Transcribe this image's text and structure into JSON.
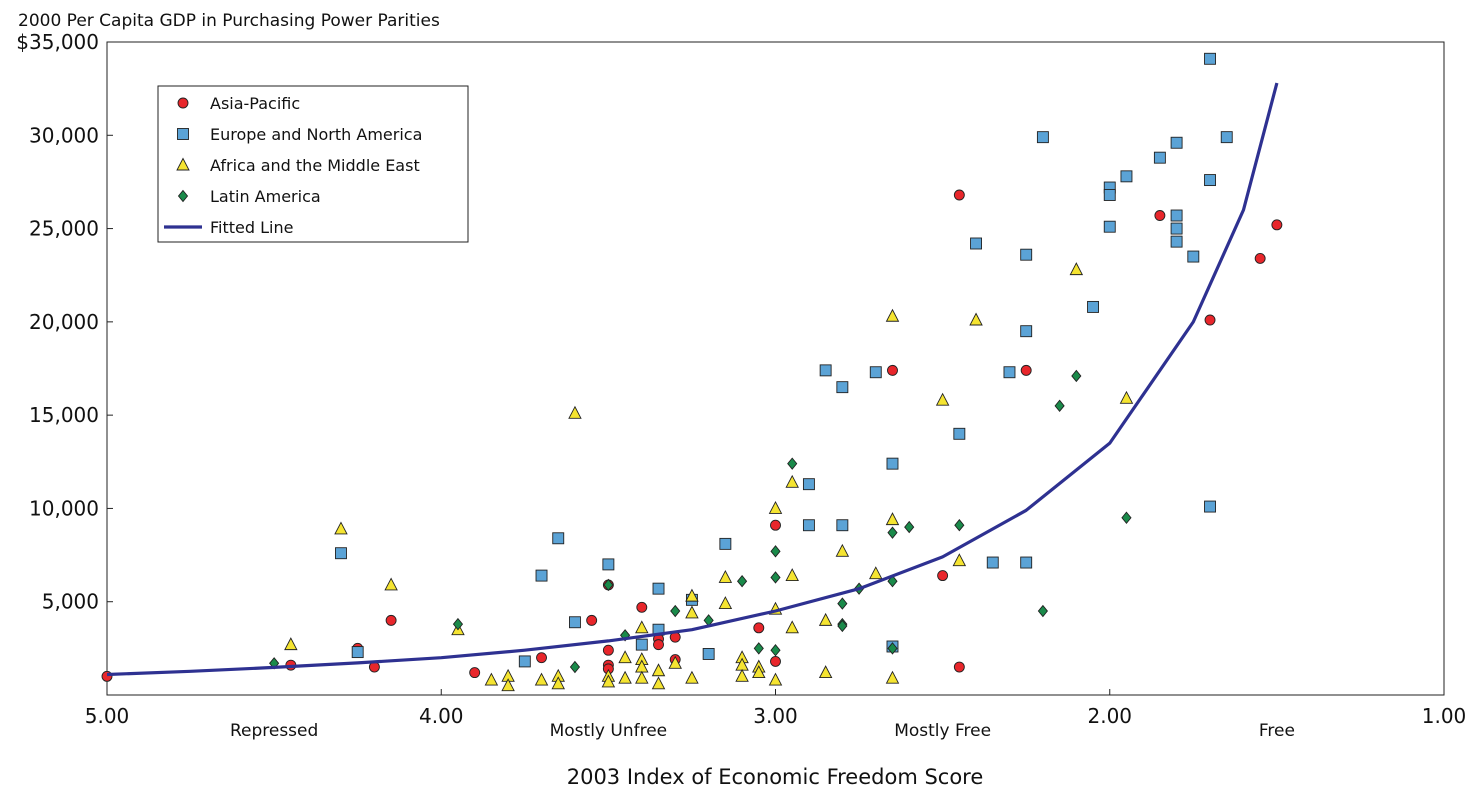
{
  "chart_data": {
    "type": "scatter",
    "title": "2000 Per Capita GDP in Purchasing Power Parities",
    "xlabel": "2003 Index of Economic Freedom Score",
    "ylabel": "",
    "xlim": [
      5.0,
      1.0
    ],
    "ylim": [
      0,
      35000
    ],
    "x_reversed": true,
    "x_ticks": [
      5.0,
      4.0,
      3.0,
      2.0,
      1.0
    ],
    "x_tick_labels": [
      "5.00",
      "4.00",
      "3.00",
      "2.00",
      "1.00"
    ],
    "y_ticks": [
      5000,
      10000,
      15000,
      20000,
      25000,
      30000,
      35000
    ],
    "y_tick_labels": [
      "5,000",
      "10,000",
      "15,000",
      "20,000",
      "25,000",
      "30,000",
      "$35,000"
    ],
    "x_band_labels": [
      {
        "text": "Repressed",
        "x": 4.5
      },
      {
        "text": "Mostly Unfree",
        "x": 3.5
      },
      {
        "text": "Mostly Free",
        "x": 2.5
      },
      {
        "text": "Free",
        "x": 1.5
      }
    ],
    "grid": false,
    "legend_position": "top-left",
    "series": [
      {
        "name": "Asia-Pacific",
        "marker": "circle",
        "color": "#e8262b",
        "points": [
          [
            5.0,
            1000
          ],
          [
            4.45,
            1600
          ],
          [
            4.25,
            2500
          ],
          [
            4.2,
            1500
          ],
          [
            4.15,
            4000
          ],
          [
            3.9,
            1200
          ],
          [
            3.7,
            2000
          ],
          [
            3.55,
            4000
          ],
          [
            3.5,
            5900
          ],
          [
            3.5,
            2400
          ],
          [
            3.5,
            1600
          ],
          [
            3.5,
            1400
          ],
          [
            3.4,
            4700
          ],
          [
            3.35,
            3000
          ],
          [
            3.35,
            2700
          ],
          [
            3.3,
            3100
          ],
          [
            3.3,
            1900
          ],
          [
            3.05,
            3600
          ],
          [
            3.0,
            9100
          ],
          [
            3.0,
            1800
          ],
          [
            2.65,
            17400
          ],
          [
            2.5,
            6400
          ],
          [
            2.45,
            26800
          ],
          [
            2.45,
            1500
          ],
          [
            2.25,
            17400
          ],
          [
            1.85,
            25700
          ],
          [
            1.7,
            20100
          ],
          [
            1.55,
            23400
          ],
          [
            1.5,
            25200
          ]
        ]
      },
      {
        "name": "Europe and North America",
        "marker": "square",
        "color": "#5ba3d6",
        "points": [
          [
            4.3,
            7600
          ],
          [
            4.25,
            2300
          ],
          [
            3.75,
            1800
          ],
          [
            3.7,
            6400
          ],
          [
            3.65,
            8400
          ],
          [
            3.6,
            3900
          ],
          [
            3.5,
            7000
          ],
          [
            3.4,
            2700
          ],
          [
            3.35,
            5700
          ],
          [
            3.35,
            3500
          ],
          [
            3.25,
            5100
          ],
          [
            3.2,
            2200
          ],
          [
            3.15,
            8100
          ],
          [
            2.9,
            11300
          ],
          [
            2.9,
            9100
          ],
          [
            2.85,
            17400
          ],
          [
            2.8,
            16500
          ],
          [
            2.8,
            9100
          ],
          [
            2.7,
            17300
          ],
          [
            2.65,
            12400
          ],
          [
            2.65,
            2600
          ],
          [
            2.45,
            14000
          ],
          [
            2.4,
            24200
          ],
          [
            2.35,
            7100
          ],
          [
            2.3,
            17300
          ],
          [
            2.25,
            23600
          ],
          [
            2.25,
            19500
          ],
          [
            2.25,
            7100
          ],
          [
            2.2,
            29900
          ],
          [
            2.05,
            20800
          ],
          [
            2.0,
            27200
          ],
          [
            2.0,
            26800
          ],
          [
            2.0,
            25100
          ],
          [
            1.95,
            27800
          ],
          [
            1.85,
            28800
          ],
          [
            1.8,
            29600
          ],
          [
            1.8,
            25700
          ],
          [
            1.8,
            25000
          ],
          [
            1.8,
            24300
          ],
          [
            1.75,
            23500
          ],
          [
            1.7,
            34100
          ],
          [
            1.7,
            27600
          ],
          [
            1.7,
            10100
          ],
          [
            1.65,
            29900
          ]
        ]
      },
      {
        "name": "Africa and the Middle East",
        "marker": "triangle",
        "color": "#f5e431",
        "points": [
          [
            4.45,
            2700
          ],
          [
            4.3,
            8900
          ],
          [
            4.15,
            5900
          ],
          [
            3.95,
            3500
          ],
          [
            3.85,
            800
          ],
          [
            3.8,
            1000
          ],
          [
            3.8,
            500
          ],
          [
            3.7,
            800
          ],
          [
            3.65,
            1000
          ],
          [
            3.65,
            600
          ],
          [
            3.6,
            15100
          ],
          [
            3.5,
            1000
          ],
          [
            3.5,
            700
          ],
          [
            3.45,
            2000
          ],
          [
            3.45,
            900
          ],
          [
            3.4,
            3600
          ],
          [
            3.4,
            1900
          ],
          [
            3.4,
            1500
          ],
          [
            3.4,
            900
          ],
          [
            3.35,
            600
          ],
          [
            3.35,
            1300
          ],
          [
            3.3,
            1700
          ],
          [
            3.25,
            5300
          ],
          [
            3.25,
            4400
          ],
          [
            3.25,
            900
          ],
          [
            3.15,
            6300
          ],
          [
            3.15,
            4900
          ],
          [
            3.1,
            2000
          ],
          [
            3.1,
            1600
          ],
          [
            3.1,
            1000
          ],
          [
            3.05,
            1500
          ],
          [
            3.05,
            1200
          ],
          [
            3.0,
            10000
          ],
          [
            3.0,
            4600
          ],
          [
            3.0,
            800
          ],
          [
            2.95,
            11400
          ],
          [
            2.95,
            6400
          ],
          [
            2.95,
            3600
          ],
          [
            2.85,
            4000
          ],
          [
            2.85,
            1200
          ],
          [
            2.8,
            7700
          ],
          [
            2.7,
            6500
          ],
          [
            2.65,
            20300
          ],
          [
            2.65,
            9400
          ],
          [
            2.65,
            900
          ],
          [
            2.5,
            15800
          ],
          [
            2.45,
            7200
          ],
          [
            2.4,
            20100
          ],
          [
            2.1,
            22800
          ],
          [
            1.95,
            15900
          ]
        ]
      },
      {
        "name": "Latin America",
        "marker": "diamond",
        "color": "#1a8a4a",
        "points": [
          [
            4.5,
            1700
          ],
          [
            3.95,
            3800
          ],
          [
            3.6,
            1500
          ],
          [
            3.5,
            5900
          ],
          [
            3.45,
            3200
          ],
          [
            3.3,
            4500
          ],
          [
            3.2,
            4000
          ],
          [
            3.1,
            6100
          ],
          [
            3.05,
            2500
          ],
          [
            3.0,
            7700
          ],
          [
            3.0,
            6300
          ],
          [
            3.0,
            2400
          ],
          [
            2.95,
            12400
          ],
          [
            2.8,
            4900
          ],
          [
            2.8,
            3800
          ],
          [
            2.8,
            3700
          ],
          [
            2.75,
            5700
          ],
          [
            2.65,
            8700
          ],
          [
            2.65,
            6100
          ],
          [
            2.65,
            2500
          ],
          [
            2.6,
            9000
          ],
          [
            2.45,
            9100
          ],
          [
            2.2,
            4500
          ],
          [
            2.15,
            15500
          ],
          [
            2.1,
            17100
          ],
          [
            1.95,
            9500
          ]
        ]
      },
      {
        "name": "Fitted Line",
        "type": "line",
        "color": "#2e3191",
        "points": [
          [
            5.0,
            1100
          ],
          [
            4.75,
            1270
          ],
          [
            4.5,
            1480
          ],
          [
            4.25,
            1720
          ],
          [
            4.0,
            2000
          ],
          [
            3.75,
            2400
          ],
          [
            3.5,
            2900
          ],
          [
            3.25,
            3500
          ],
          [
            3.0,
            4500
          ],
          [
            2.75,
            5700
          ],
          [
            2.5,
            7400
          ],
          [
            2.25,
            9900
          ],
          [
            2.0,
            13500
          ],
          [
            1.75,
            20000
          ],
          [
            1.6,
            26000
          ],
          [
            1.5,
            32800
          ]
        ]
      }
    ]
  }
}
